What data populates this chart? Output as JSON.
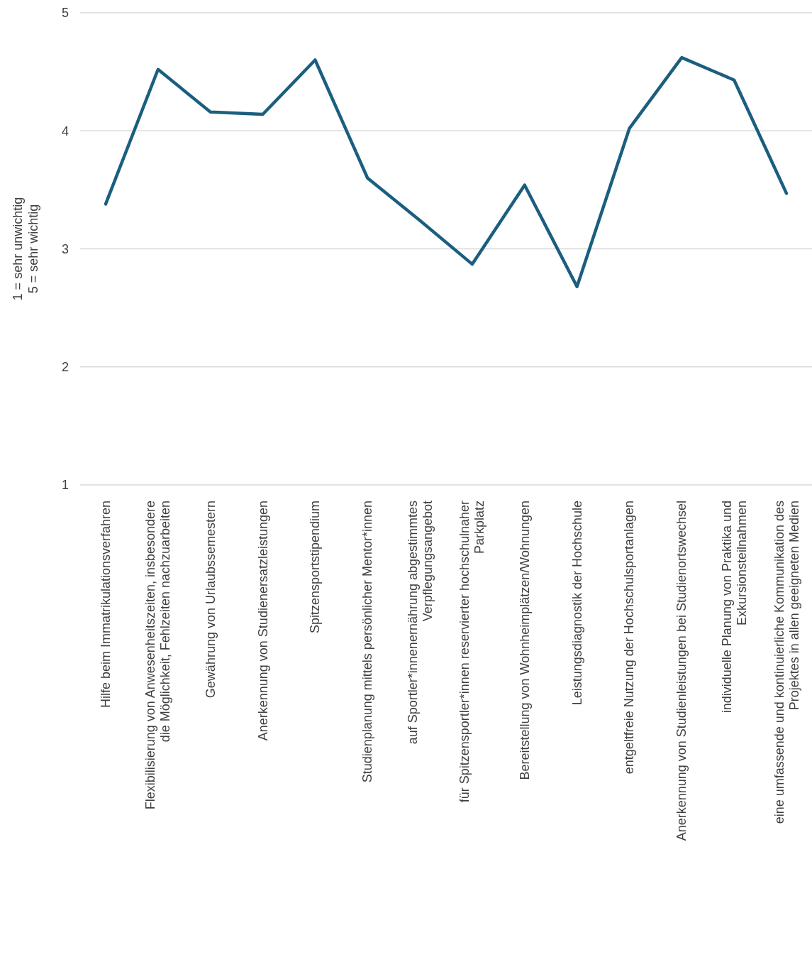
{
  "chart_data": {
    "type": "line",
    "ylabel": "1 = sehr unwichtig\n5 = sehr wichtig",
    "categories": [
      "Hilfe beim Immatrikulationsverfahren",
      "Flexibilisierung von Anwesenheitszeiten, insbesondere die Möglichkeit, Fehlzeiten nachzuarbeiten",
      "Gewährung von Urlaubssemestern",
      "Anerkennung von Studienersatzleistungen",
      "Spitzensportstipendium",
      "Studienplanung mittels persönlicher Mentor*innen",
      "auf Sportler*innenernährung abgestimmtes Verpflegungsangebot",
      "für Spitzensportler*innen reservierter hochschulnaher Parkplatz",
      "Bereitstellung von Wohnheimplätzen/Wohnungen",
      "Leistungsdiagnostik der Hochschule",
      "entgeltfreie Nutzung der Hochschulsportanlagen",
      "Anerkennung von Studienleistungen bei Studienortswechsel",
      "individuelle Planung von Praktika und Exkursionsteilnahmen",
      "eine umfassende und kontinuierliche Kommunikation des Projektes in allen geeigneten Medien"
    ],
    "series": [
      {
        "color": "#1b5e80",
        "values": [
          3.38,
          4.52,
          4.16,
          4.14,
          4.6,
          3.6,
          3.24,
          2.87,
          3.54,
          2.68,
          4.02,
          4.62,
          4.43,
          3.47
        ]
      }
    ],
    "ylim": [
      1,
      5
    ],
    "yticks": [
      1,
      2,
      3,
      4,
      5
    ],
    "grid": "y",
    "legend": false,
    "marker": "none",
    "line_style": "solid"
  }
}
